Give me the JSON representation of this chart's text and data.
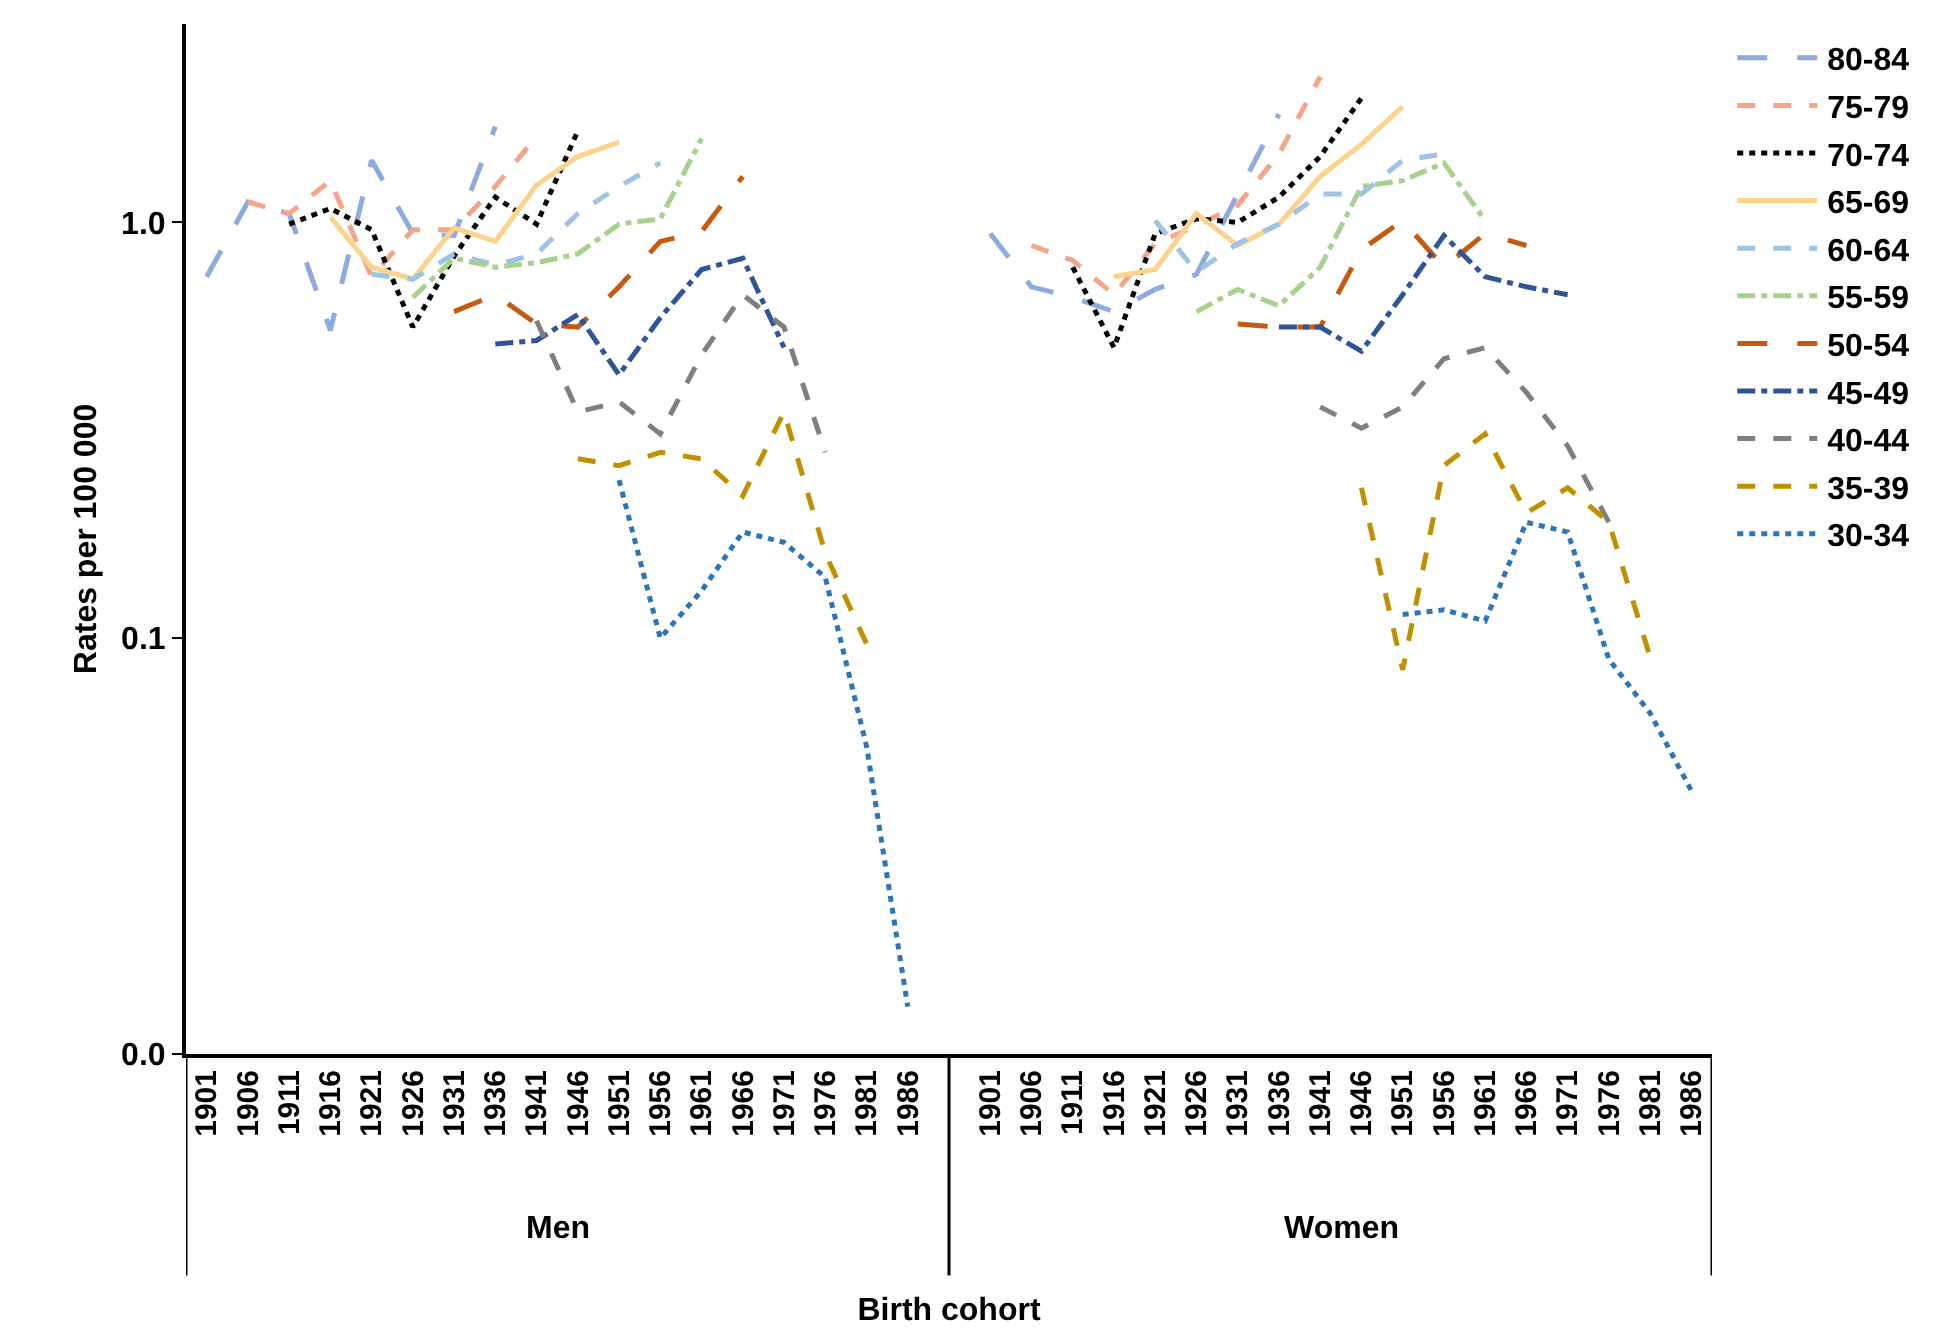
{
  "chart_data": {
    "type": "line",
    "xlabel": "Birth cohort",
    "ylabel": "Rates per 100 000",
    "categories": [
      "1901",
      "1906",
      "1911",
      "1916",
      "1921",
      "1926",
      "1931",
      "1936",
      "1941",
      "1946",
      "1951",
      "1956",
      "1961",
      "1966",
      "1971",
      "1976",
      "1981",
      "1986",
      null,
      "1901",
      "1906",
      "1911",
      "1916",
      "1921",
      "1926",
      "1931",
      "1936",
      "1941",
      "1946",
      "1951",
      "1956",
      "1961",
      "1966",
      "1971",
      "1976",
      "1981",
      "1986"
    ],
    "annotations": [
      "Men",
      "Women"
    ],
    "log": true,
    "ylim": [
      0.01,
      3
    ],
    "yticks": [
      {
        "value": 0.01,
        "label": "0.0"
      },
      0.1,
      {
        "value": 1,
        "label": "1.0"
      }
    ],
    "grid": false,
    "legend": "top right",
    "marker": "none",
    "series": [
      {
        "name": "80-84",
        "color": "#8faadc",
        "line_style": "longdash",
        "values": [
          0.74,
          1.12,
          1.05,
          0.55,
          1.41,
          0.94,
          0.93,
          1.7,
          null,
          null,
          null,
          null,
          null,
          null,
          null,
          null,
          null,
          null,
          null,
          0.94,
          0.7,
          0.66,
          0.61,
          0.69,
          0.75,
          1.17,
          1.82,
          null,
          null,
          null,
          null,
          null,
          null,
          null,
          null,
          null,
          null
        ]
      },
      {
        "name": "75-79",
        "color": "#f4a58a",
        "line_style": "dashed",
        "values": [
          null,
          1.12,
          1.05,
          1.26,
          0.74,
          0.96,
          0.96,
          1.22,
          1.61,
          null,
          null,
          null,
          null,
          null,
          null,
          null,
          null,
          null,
          null,
          null,
          0.88,
          0.81,
          0.67,
          0.89,
          0.98,
          1.1,
          1.46,
          2.24,
          null,
          null,
          null,
          null,
          null,
          null,
          null,
          null,
          null
        ]
      },
      {
        "name": "70-74",
        "color": "#000000",
        "line_style": "dotted",
        "values": [
          null,
          null,
          0.99,
          1.08,
          0.96,
          0.56,
          0.83,
          1.15,
          0.99,
          1.66,
          null,
          null,
          null,
          null,
          null,
          null,
          null,
          null,
          null,
          null,
          null,
          0.78,
          0.5,
          0.94,
          1.02,
          1.0,
          1.15,
          1.44,
          1.99,
          null,
          null,
          null,
          null,
          null,
          null,
          null,
          null
        ]
      },
      {
        "name": "65-69",
        "color": "#fbd38d",
        "line_style": "solid",
        "values": [
          null,
          null,
          null,
          1.03,
          0.78,
          0.73,
          0.97,
          0.9,
          1.23,
          1.44,
          1.56,
          null,
          null,
          null,
          null,
          null,
          null,
          null,
          null,
          null,
          null,
          null,
          0.74,
          0.77,
          1.05,
          0.88,
          0.99,
          1.29,
          1.54,
          1.9,
          null,
          null,
          null,
          null,
          null,
          null,
          null
        ]
      },
      {
        "name": "60-64",
        "color": "#9dc3e6",
        "line_style": "dashed",
        "values": [
          null,
          null,
          null,
          null,
          0.75,
          0.73,
          0.84,
          0.79,
          0.84,
          1.05,
          1.22,
          1.39,
          null,
          null,
          null,
          null,
          null,
          null,
          null,
          null,
          null,
          null,
          null,
          1.01,
          0.76,
          0.89,
          0.99,
          1.17,
          1.17,
          1.41,
          1.46,
          null,
          null,
          null,
          null,
          null,
          null
        ]
      },
      {
        "name": "55-59",
        "color": "#a9d18e",
        "line_style": "dashdot",
        "values": [
          null,
          null,
          null,
          null,
          null,
          0.66,
          0.82,
          0.78,
          0.8,
          0.84,
          0.99,
          1.02,
          1.59,
          null,
          null,
          null,
          null,
          null,
          null,
          null,
          null,
          null,
          null,
          null,
          0.61,
          0.69,
          0.63,
          0.78,
          1.22,
          1.26,
          1.39,
          1.01,
          null,
          null,
          null,
          null,
          null
        ]
      },
      {
        "name": "50-54",
        "color": "#c55a11",
        "line_style": "longdash",
        "values": [
          null,
          null,
          null,
          null,
          null,
          null,
          0.61,
          0.67,
          0.57,
          0.56,
          0.7,
          0.9,
          0.95,
          1.29,
          null,
          null,
          null,
          null,
          null,
          null,
          null,
          null,
          null,
          null,
          null,
          0.57,
          0.56,
          0.56,
          0.86,
          1.01,
          0.78,
          0.94,
          0.88,
          null,
          null,
          null,
          null
        ]
      },
      {
        "name": "45-49",
        "color": "#2f5597",
        "line_style": "dashdot",
        "values": [
          null,
          null,
          null,
          null,
          null,
          null,
          null,
          0.51,
          0.52,
          0.6,
          0.43,
          0.59,
          0.77,
          0.82,
          0.5,
          null,
          null,
          null,
          null,
          null,
          null,
          null,
          null,
          null,
          null,
          null,
          0.56,
          0.56,
          0.49,
          0.67,
          0.93,
          0.74,
          0.7,
          0.67,
          null,
          null,
          null
        ]
      },
      {
        "name": "40-44",
        "color": "#7f7f7f",
        "line_style": "dashed",
        "values": [
          null,
          null,
          null,
          null,
          null,
          null,
          null,
          null,
          0.58,
          0.35,
          0.37,
          0.31,
          0.48,
          0.67,
          0.56,
          0.28,
          null,
          null,
          null,
          null,
          null,
          null,
          null,
          null,
          null,
          null,
          null,
          0.36,
          0.32,
          0.36,
          0.47,
          0.5,
          0.39,
          0.29,
          0.19,
          null,
          null
        ]
      },
      {
        "name": "35-39",
        "color": "#bf9000",
        "line_style": "dashed",
        "values": [
          null,
          null,
          null,
          null,
          null,
          null,
          null,
          null,
          null,
          0.27,
          0.26,
          0.28,
          0.27,
          0.22,
          0.35,
          0.16,
          0.097,
          null,
          null,
          null,
          null,
          null,
          null,
          null,
          null,
          null,
          null,
          null,
          0.23,
          0.084,
          0.26,
          0.31,
          0.2,
          0.23,
          0.19,
          0.09,
          null
        ]
      },
      {
        "name": "30-34",
        "color": "#2e75b6",
        "line_style": "dotted",
        "values": [
          null,
          null,
          null,
          null,
          null,
          null,
          null,
          null,
          null,
          null,
          0.24,
          0.1,
          0.13,
          0.18,
          0.17,
          0.14,
          0.055,
          0.013,
          null,
          null,
          null,
          null,
          null,
          null,
          null,
          null,
          null,
          null,
          null,
          0.114,
          0.117,
          0.11,
          0.19,
          0.18,
          0.089,
          0.066,
          0.043
        ]
      }
    ]
  }
}
